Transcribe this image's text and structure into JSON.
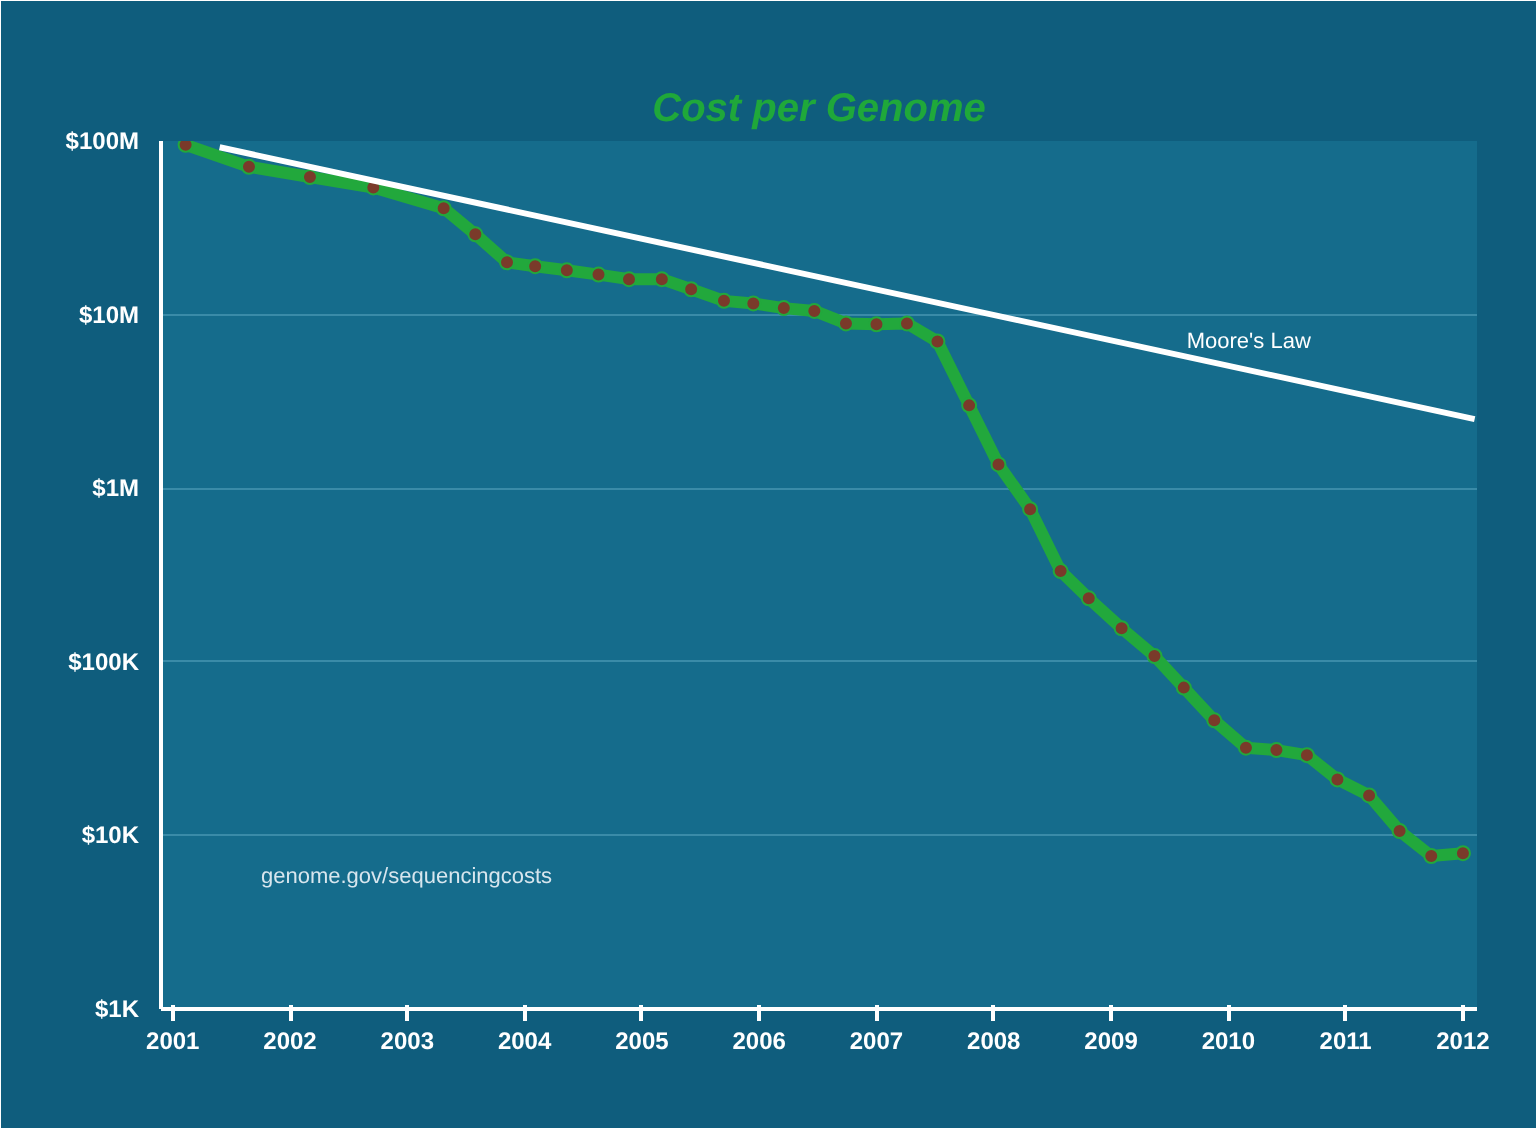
{
  "chart_data": {
    "type": "line",
    "title": "Cost per Genome",
    "series": [
      {
        "color": "#22a83c",
        "marker": "circle",
        "x": [
          2001.11,
          2001.65,
          2002.17,
          2002.71,
          2003.31,
          2003.58,
          2003.85,
          2004.09,
          2004.36,
          2004.63,
          2004.89,
          2005.17,
          2005.42,
          2005.7,
          2005.95,
          2006.21,
          2006.47,
          2006.74,
          2007.0,
          2007.26,
          2007.52,
          2007.79,
          2008.04,
          2008.31,
          2008.57,
          2008.81,
          2009.09,
          2009.37,
          2009.62,
          2009.88,
          2010.15,
          2010.41,
          2010.67,
          2010.93,
          2011.2,
          2011.46,
          2011.73,
          2012.0
        ],
        "values": [
          95000000,
          71000000,
          62000000,
          54000000,
          41000000,
          29000000,
          20000000,
          19000000,
          18000000,
          17000000,
          16000000,
          16000000,
          14000000,
          12000000,
          11600000,
          10900000,
          10500000,
          8900000,
          8800000,
          8900000,
          7000000,
          3000000,
          1370000,
          757000,
          333000,
          232000,
          156000,
          108000,
          71000,
          46000,
          32000,
          31000,
          29000,
          21000,
          17000,
          10600,
          7600,
          7900
        ]
      },
      {
        "name": "Moore's Law",
        "color": "#ffffff",
        "marker": "none",
        "x": [
          2001.4,
          2012.1
        ],
        "values": [
          92000000,
          2500000
        ]
      }
    ],
    "log": "y",
    "xlim": [
      2000.9,
      2012.12
    ],
    "ylim": [
      1000,
      100000000
    ],
    "xticks": [
      2001,
      2002,
      2003,
      2004,
      2005,
      2006,
      2007,
      2008,
      2009,
      2010,
      2011,
      2012
    ],
    "yticks": [
      {
        "value": 1000,
        "label": "$1K"
      },
      {
        "value": 10000,
        "label": "$10K"
      },
      {
        "value": 100000,
        "label": "$100K"
      },
      {
        "value": 1000000,
        "label": "$1M"
      },
      {
        "value": 10000000,
        "label": "$10M"
      },
      {
        "value": 100000000,
        "label": "$100M"
      }
    ],
    "grid": "y",
    "legend": false,
    "line_style": "solid",
    "annotations": [
      "genome.gov/sequencingcosts"
    ]
  }
}
